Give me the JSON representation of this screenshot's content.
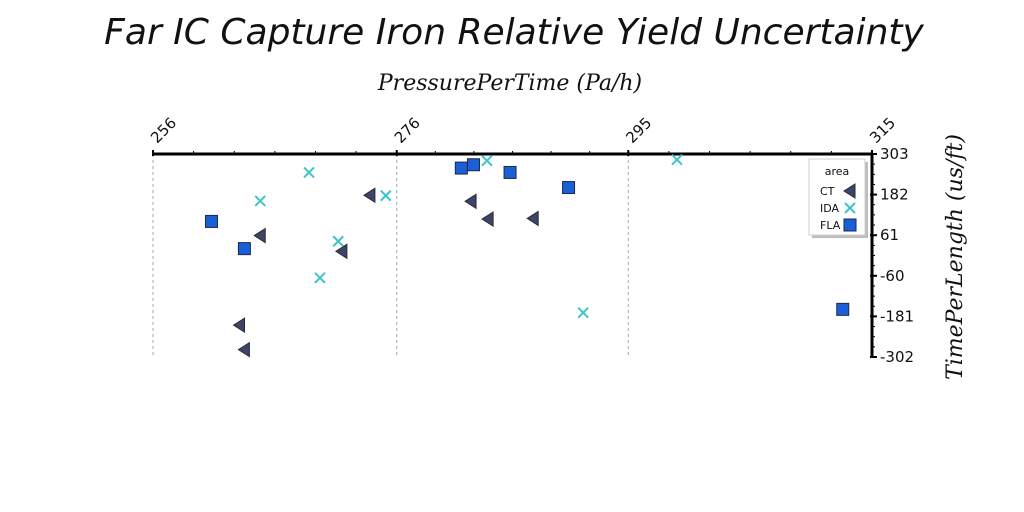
{
  "chart_data": {
    "type": "scatter",
    "title": "Far IC Capture Iron Relative Yield Uncertainty",
    "xlabel": "PressurePerTime (Pa/h)",
    "ylabel": "TimePerLength (us/ft)",
    "xlim": [
      256,
      315
    ],
    "ylim": [
      -302,
      303
    ],
    "x_ticks": [
      "256",
      "276",
      "295",
      "315"
    ],
    "y_ticks": [
      "303",
      "182",
      "61",
      "-60",
      "-181",
      "-302"
    ],
    "x_axis_position": "top",
    "y_axis_position": "right",
    "grid": "vertical dashed",
    "legend": {
      "title": "area",
      "placement": "top-right",
      "entries": [
        "CT",
        "IDA",
        "FLA"
      ]
    },
    "colors": {
      "CT": "#3d4466",
      "IDA": "#3cc4c8",
      "FLA": "#1a5fd6"
    },
    "series": [
      {
        "name": "CT",
        "marker": "triangle-left",
        "points": [
          [
            263.1,
            -207
          ],
          [
            264.8,
            60
          ],
          [
            263.5,
            -280
          ],
          [
            271.5,
            13
          ],
          [
            273.8,
            180
          ],
          [
            282.1,
            162
          ],
          [
            283.5,
            109
          ],
          [
            287.2,
            111
          ]
        ]
      },
      {
        "name": "IDA",
        "marker": "x",
        "points": [
          [
            264.8,
            163
          ],
          [
            268.8,
            248
          ],
          [
            271.2,
            43
          ],
          [
            269.7,
            -66
          ],
          [
            275.1,
            179
          ],
          [
            283.4,
            283
          ],
          [
            291.3,
            -170
          ],
          [
            299.0,
            286
          ]
        ]
      },
      {
        "name": "FLA",
        "marker": "square",
        "points": [
          [
            260.8,
            102
          ],
          [
            263.5,
            21
          ],
          [
            281.3,
            261
          ],
          [
            282.3,
            271
          ],
          [
            285.3,
            248
          ],
          [
            290.1,
            203
          ],
          [
            312.6,
            -160
          ]
        ]
      }
    ]
  }
}
